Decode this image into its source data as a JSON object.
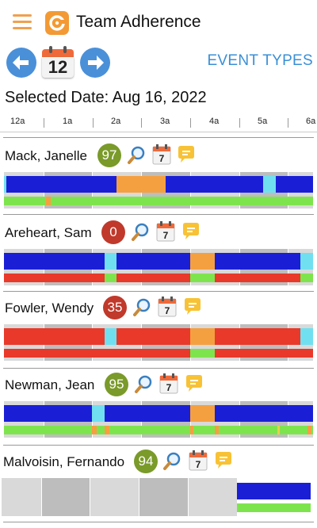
{
  "header": {
    "title": "Team Adherence",
    "menu_icon": "hamburger-icon",
    "logo_icon": "app-logo-icon"
  },
  "nav": {
    "calendar_day": "12",
    "event_types_label": "EVENT TYPES",
    "prev_icon": "arrow-left-icon",
    "next_icon": "arrow-right-icon"
  },
  "selected_date": "Selected Date: Aug 16, 2022",
  "timeline": {
    "hours": [
      "12a",
      "1a",
      "2a",
      "3a",
      "4a",
      "5a",
      "6a"
    ]
  },
  "colors": {
    "on_shift": "#1a1fd6",
    "break": "#f5a040",
    "lunch": "#70e0f0",
    "adherent": "#7ee44e",
    "nonadherent": "#e8392a",
    "score_good": "#7a9a2a",
    "score_bad": "#c0392b"
  },
  "calendar_icon_day": "7",
  "employees": [
    {
      "name": "Mack, Janelle",
      "score": "97",
      "score_status": "good"
    },
    {
      "name": "Areheart, Sam",
      "score": "0",
      "score_status": "bad"
    },
    {
      "name": "Fowler, Wendy",
      "score": "35",
      "score_status": "bad"
    },
    {
      "name": "Newman, Jean",
      "score": "95",
      "score_status": "good"
    },
    {
      "name": "Malvoisin, Fernando",
      "score": "94",
      "score_status": "good"
    }
  ]
}
